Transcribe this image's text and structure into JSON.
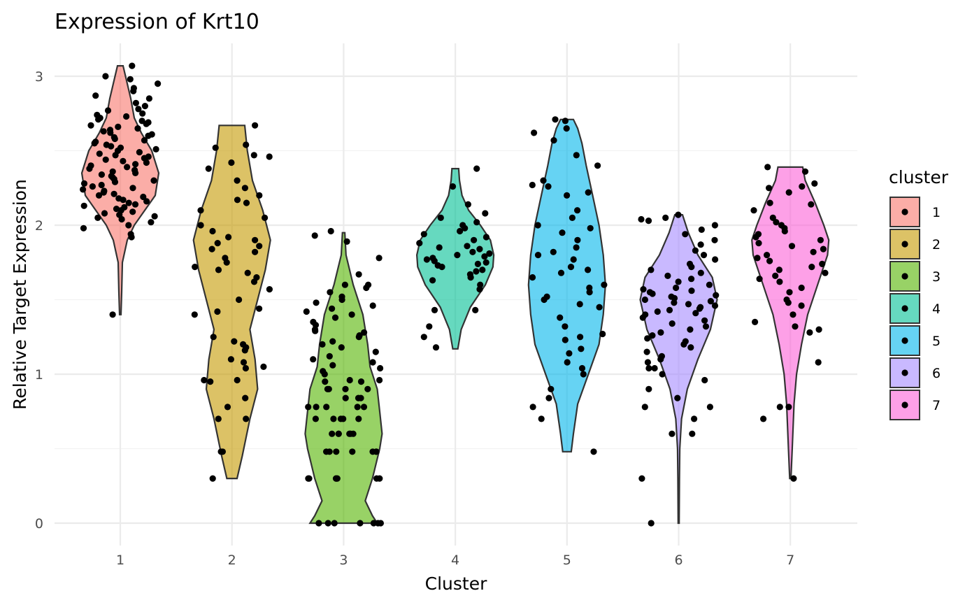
{
  "chart_data": {
    "type": "violin",
    "title": "Expression of Krt10",
    "xlabel": "Cluster",
    "ylabel": "Relative Target Expression",
    "categories": [
      "1",
      "2",
      "3",
      "4",
      "5",
      "6",
      "7"
    ],
    "yticks": [
      0,
      1,
      2,
      3
    ],
    "ylim": [
      -0.15,
      3.23
    ],
    "grid": true,
    "legend": {
      "title": "cluster",
      "position": "right",
      "entries": [
        "1",
        "2",
        "3",
        "4",
        "5",
        "6",
        "7"
      ]
    },
    "colors": [
      "#F8766D",
      "#C49A00",
      "#53B400",
      "#00C094",
      "#00B6EB",
      "#A58AFF",
      "#FB61D7"
    ],
    "violins": [
      {
        "cluster": "1",
        "min": 1.4,
        "max": 3.07,
        "profile": [
          [
            1.4,
            0.01
          ],
          [
            1.55,
            0.02
          ],
          [
            1.75,
            0.03
          ],
          [
            1.9,
            0.1
          ],
          [
            2.0,
            0.2
          ],
          [
            2.1,
            0.35
          ],
          [
            2.2,
            0.5
          ],
          [
            2.35,
            0.55
          ],
          [
            2.5,
            0.45
          ],
          [
            2.62,
            0.3
          ],
          [
            2.72,
            0.2
          ],
          [
            2.85,
            0.15
          ],
          [
            2.97,
            0.09
          ],
          [
            3.07,
            0.04
          ]
        ]
      },
      {
        "cluster": "2",
        "min": 0.3,
        "max": 2.67,
        "profile": [
          [
            0.3,
            0.02
          ],
          [
            0.45,
            0.04
          ],
          [
            0.7,
            0.07
          ],
          [
            0.9,
            0.1
          ],
          [
            1.1,
            0.09
          ],
          [
            1.3,
            0.07
          ],
          [
            1.5,
            0.1
          ],
          [
            1.7,
            0.13
          ],
          [
            1.9,
            0.15
          ],
          [
            2.1,
            0.12
          ],
          [
            2.3,
            0.08
          ],
          [
            2.5,
            0.06
          ],
          [
            2.67,
            0.05
          ]
        ]
      },
      {
        "cluster": "3",
        "min": 0.0,
        "max": 1.95,
        "profile": [
          [
            0.0,
            0.14
          ],
          [
            0.05,
            0.12
          ],
          [
            0.15,
            0.09
          ],
          [
            0.3,
            0.12
          ],
          [
            0.5,
            0.15
          ],
          [
            0.6,
            0.16
          ],
          [
            0.75,
            0.15
          ],
          [
            0.9,
            0.14
          ],
          [
            1.05,
            0.11
          ],
          [
            1.2,
            0.1
          ],
          [
            1.4,
            0.08
          ],
          [
            1.6,
            0.04
          ],
          [
            1.8,
            0.01
          ],
          [
            1.95,
            0.005
          ]
        ]
      },
      {
        "cluster": "4",
        "min": 1.17,
        "max": 2.38,
        "profile": [
          [
            1.17,
            0.03
          ],
          [
            1.3,
            0.07
          ],
          [
            1.45,
            0.18
          ],
          [
            1.6,
            0.36
          ],
          [
            1.72,
            0.45
          ],
          [
            1.8,
            0.46
          ],
          [
            1.9,
            0.42
          ],
          [
            2.0,
            0.3
          ],
          [
            2.1,
            0.16
          ],
          [
            2.2,
            0.08
          ],
          [
            2.3,
            0.05
          ],
          [
            2.38,
            0.04
          ]
        ]
      },
      {
        "cluster": "5",
        "min": 0.48,
        "max": 2.71,
        "profile": [
          [
            0.48,
            0.02
          ],
          [
            0.6,
            0.03
          ],
          [
            0.8,
            0.05
          ],
          [
            1.0,
            0.1
          ],
          [
            1.2,
            0.15
          ],
          [
            1.4,
            0.17
          ],
          [
            1.6,
            0.18
          ],
          [
            1.8,
            0.17
          ],
          [
            2.0,
            0.15
          ],
          [
            2.2,
            0.12
          ],
          [
            2.4,
            0.09
          ],
          [
            2.55,
            0.07
          ],
          [
            2.65,
            0.05
          ],
          [
            2.71,
            0.03
          ]
        ]
      },
      {
        "cluster": "6",
        "min": 0.0,
        "max": 2.07,
        "profile": [
          [
            0.0,
            0.005
          ],
          [
            0.3,
            0.008
          ],
          [
            0.5,
            0.012
          ],
          [
            0.7,
            0.03
          ],
          [
            0.9,
            0.09
          ],
          [
            1.1,
            0.2
          ],
          [
            1.3,
            0.33
          ],
          [
            1.5,
            0.4
          ],
          [
            1.65,
            0.35
          ],
          [
            1.8,
            0.2
          ],
          [
            1.95,
            0.1
          ],
          [
            2.07,
            0.04
          ]
        ]
      },
      {
        "cluster": "7",
        "min": 0.3,
        "max": 2.39,
        "profile": [
          [
            0.3,
            0.005
          ],
          [
            0.5,
            0.015
          ],
          [
            0.8,
            0.03
          ],
          [
            1.0,
            0.05
          ],
          [
            1.2,
            0.09
          ],
          [
            1.4,
            0.14
          ],
          [
            1.6,
            0.22
          ],
          [
            1.8,
            0.3
          ],
          [
            1.9,
            0.31
          ],
          [
            2.0,
            0.27
          ],
          [
            2.15,
            0.2
          ],
          [
            2.3,
            0.12
          ],
          [
            2.39,
            0.1
          ]
        ]
      }
    ],
    "points": [
      {
        "cluster": "1",
        "values": [
          3.07,
          3.0,
          2.98,
          2.95,
          2.92,
          2.9,
          2.87,
          2.85,
          2.82,
          2.8,
          2.78,
          2.77,
          2.75,
          2.74,
          2.73,
          2.72,
          2.71,
          2.7,
          2.69,
          2.68,
          2.67,
          2.66,
          2.65,
          2.64,
          2.63,
          2.62,
          2.61,
          2.6,
          2.59,
          2.58,
          2.57,
          2.56,
          2.55,
          2.54,
          2.53,
          2.52,
          2.51,
          2.5,
          2.49,
          2.48,
          2.47,
          2.46,
          2.45,
          2.44,
          2.43,
          2.42,
          2.41,
          2.4,
          2.39,
          2.38,
          2.37,
          2.36,
          2.35,
          2.34,
          2.33,
          2.32,
          2.31,
          2.3,
          2.29,
          2.28,
          2.27,
          2.26,
          2.25,
          2.24,
          2.23,
          2.22,
          2.21,
          2.2,
          2.19,
          2.18,
          2.17,
          2.16,
          2.15,
          2.14,
          2.13,
          2.12,
          2.11,
          2.1,
          2.09,
          2.08,
          2.07,
          2.06,
          2.05,
          2.04,
          2.02,
          2.0,
          1.98,
          1.94,
          1.92,
          1.4
        ]
      },
      {
        "cluster": "2",
        "values": [
          2.67,
          2.54,
          2.52,
          2.47,
          2.46,
          2.42,
          2.38,
          2.3,
          2.25,
          2.2,
          2.17,
          2.15,
          2.1,
          2.05,
          2.0,
          1.96,
          1.92,
          1.9,
          1.88,
          1.86,
          1.84,
          1.82,
          1.78,
          1.75,
          1.72,
          1.7,
          1.68,
          1.65,
          1.62,
          1.57,
          1.5,
          1.44,
          1.42,
          1.4,
          1.25,
          1.22,
          1.2,
          1.18,
          1.16,
          1.1,
          1.08,
          1.05,
          1.04,
          0.96,
          0.96,
          0.95,
          0.84,
          0.78,
          0.7,
          0.7,
          0.48,
          0.48,
          0.3
        ]
      },
      {
        "cluster": "3",
        "values": [
          1.96,
          1.93,
          1.89,
          1.78,
          1.67,
          1.6,
          1.6,
          1.58,
          1.55,
          1.52,
          1.5,
          1.48,
          1.46,
          1.44,
          1.42,
          1.4,
          1.38,
          1.35,
          1.33,
          1.3,
          1.29,
          1.28,
          1.26,
          1.25,
          1.22,
          1.2,
          1.18,
          1.15,
          1.12,
          1.1,
          1.08,
          1.06,
          1.04,
          1.02,
          1.0,
          0.96,
          0.96,
          0.95,
          0.95,
          0.9,
          0.9,
          0.9,
          0.9,
          0.84,
          0.84,
          0.84,
          0.78,
          0.78,
          0.78,
          0.78,
          0.78,
          0.7,
          0.7,
          0.7,
          0.7,
          0.7,
          0.6,
          0.6,
          0.6,
          0.6,
          0.6,
          0.6,
          0.48,
          0.48,
          0.48,
          0.48,
          0.48,
          0.48,
          0.48,
          0.3,
          0.3,
          0.3,
          0.3,
          0.3,
          0.3,
          0.3,
          0.0,
          0.0,
          0.0,
          0.0,
          0.0,
          0.0,
          0.0
        ]
      },
      {
        "cluster": "4",
        "values": [
          2.38,
          2.26,
          2.14,
          2.08,
          2.05,
          2.02,
          2.0,
          1.98,
          1.96,
          1.94,
          1.92,
          1.9,
          1.88,
          1.86,
          1.85,
          1.84,
          1.82,
          1.81,
          1.8,
          1.79,
          1.78,
          1.77,
          1.76,
          1.75,
          1.74,
          1.73,
          1.72,
          1.7,
          1.69,
          1.67,
          1.65,
          1.63,
          1.6,
          1.57,
          1.43,
          1.43,
          1.32,
          1.25,
          1.18
        ]
      },
      {
        "cluster": "5",
        "values": [
          2.71,
          2.7,
          2.65,
          2.62,
          2.57,
          2.47,
          2.4,
          2.3,
          2.27,
          2.26,
          2.22,
          2.2,
          2.1,
          2.05,
          2.0,
          1.98,
          1.95,
          1.9,
          1.85,
          1.82,
          1.8,
          1.77,
          1.72,
          1.7,
          1.68,
          1.65,
          1.6,
          1.58,
          1.55,
          1.52,
          1.5,
          1.47,
          1.45,
          1.38,
          1.32,
          1.27,
          1.25,
          1.23,
          1.17,
          1.14,
          1.08,
          1.04,
          1.0,
          0.9,
          0.84,
          0.78,
          0.7,
          0.48
        ]
      },
      {
        "cluster": "6",
        "values": [
          2.07,
          2.05,
          2.04,
          2.03,
          2.0,
          1.97,
          1.94,
          1.9,
          1.87,
          1.83,
          1.8,
          1.77,
          1.74,
          1.72,
          1.7,
          1.68,
          1.66,
          1.64,
          1.62,
          1.6,
          1.58,
          1.57,
          1.56,
          1.55,
          1.54,
          1.53,
          1.52,
          1.51,
          1.5,
          1.49,
          1.48,
          1.47,
          1.46,
          1.45,
          1.44,
          1.43,
          1.42,
          1.41,
          1.4,
          1.38,
          1.36,
          1.34,
          1.32,
          1.3,
          1.28,
          1.26,
          1.24,
          1.22,
          1.2,
          1.18,
          1.15,
          1.12,
          1.1,
          1.08,
          1.04,
          1.04,
          1.0,
          0.96,
          0.9,
          0.84,
          0.78,
          0.78,
          0.7,
          0.6,
          0.6,
          0.3,
          0.0
        ]
      },
      {
        "cluster": "7",
        "values": [
          2.39,
          2.36,
          2.28,
          2.26,
          2.25,
          2.22,
          2.15,
          2.14,
          2.1,
          2.05,
          2.02,
          2.0,
          1.98,
          1.96,
          1.94,
          1.92,
          1.9,
          1.88,
          1.86,
          1.84,
          1.82,
          1.8,
          1.78,
          1.76,
          1.74,
          1.72,
          1.7,
          1.68,
          1.66,
          1.64,
          1.62,
          1.58,
          1.55,
          1.5,
          1.48,
          1.46,
          1.4,
          1.35,
          1.32,
          1.3,
          1.28,
          1.08,
          0.78,
          0.78,
          0.7,
          0.3
        ]
      }
    ]
  }
}
